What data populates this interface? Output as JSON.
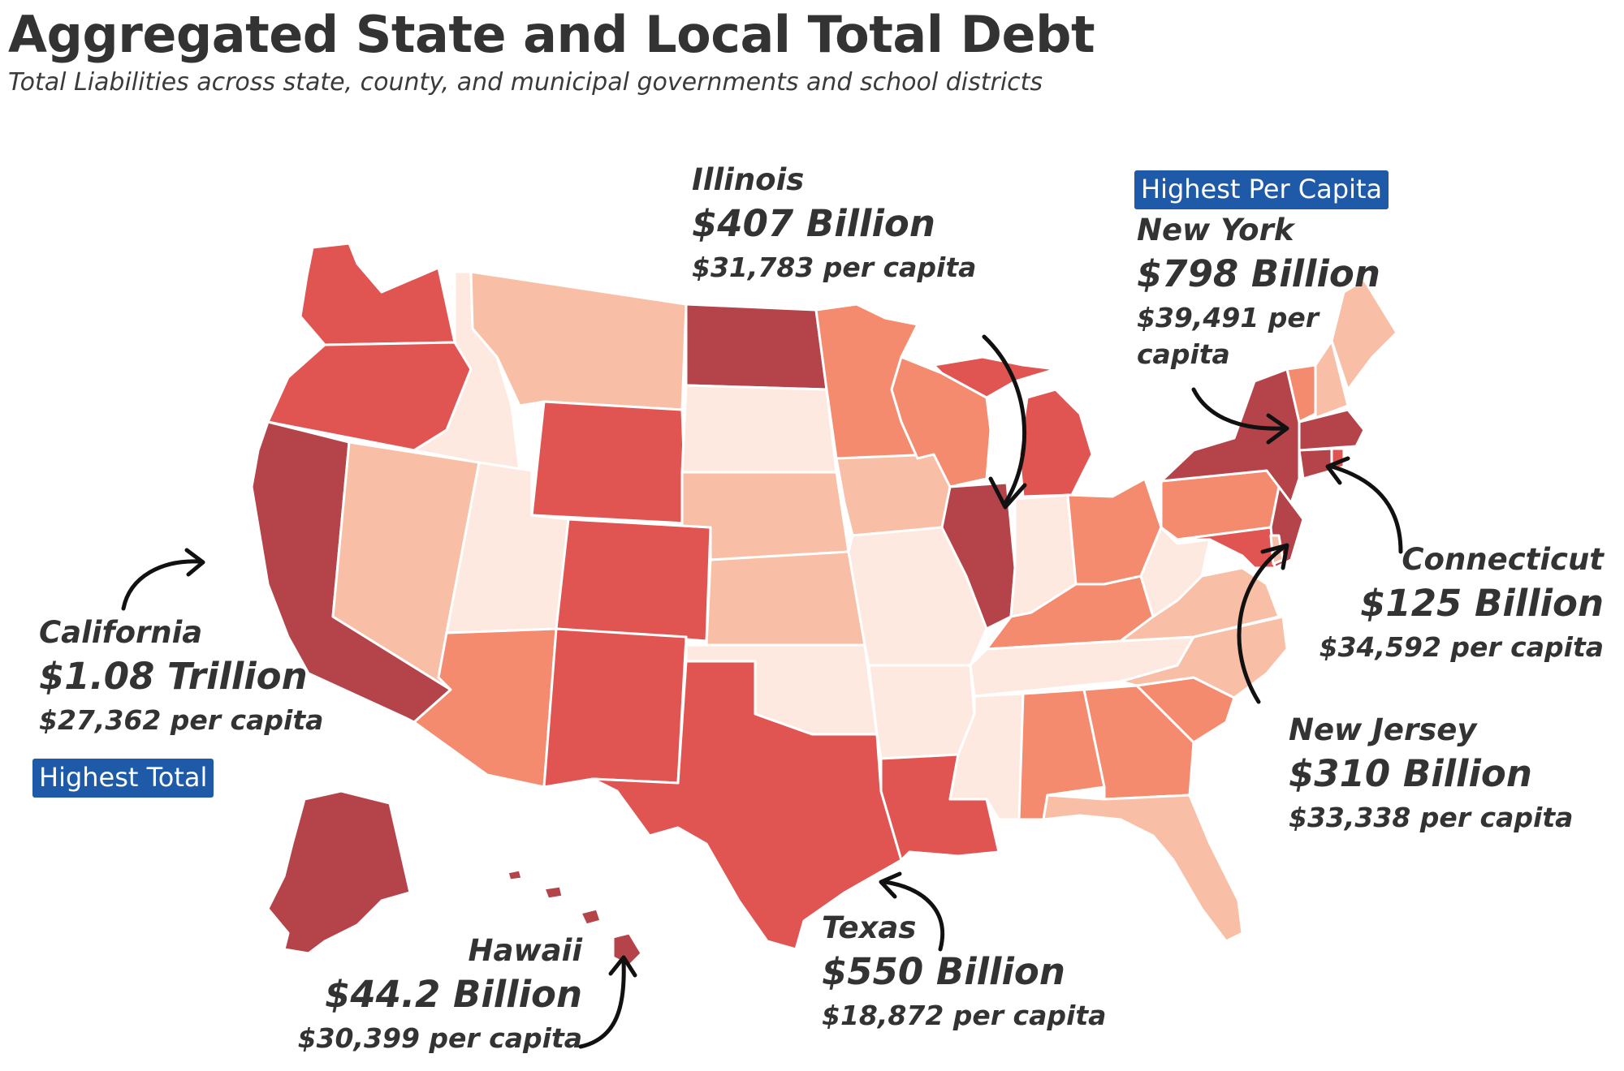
{
  "header": {
    "title": "Aggregated State and Local Total Debt",
    "subtitle": "Total Liabilities across state, county, and municipal governments and school districts"
  },
  "colors": {
    "darkest": "#b5444a",
    "dark": "#e05552",
    "medium": "#f48a6e",
    "light": "#f8bfa6",
    "lightest": "#fde9e0",
    "badge": "#1e5aa8"
  },
  "badges": {
    "highest_total": "Highest Total",
    "highest_per_capita": "Highest Per Capita"
  },
  "callouts": {
    "california": {
      "name": "California",
      "amount": "$1.08 Trillion",
      "per_capita": "$27,362 per capita"
    },
    "illinois": {
      "name": "Illinois",
      "amount": "$407 Billion",
      "per_capita": "$31,783 per capita"
    },
    "new_york": {
      "name": "New York",
      "amount": "$798 Billion",
      "per_capita_line1": "$39,491 per",
      "per_capita_line2": "capita"
    },
    "connecticut": {
      "name": "Connecticut",
      "amount": "$125 Billion",
      "per_capita": "$34,592 per capita"
    },
    "new_jersey": {
      "name": "New Jersey",
      "amount": "$310 Billion",
      "per_capita": "$33,338 per capita"
    },
    "texas": {
      "name": "Texas",
      "amount": "$550 Billion",
      "per_capita": "$18,872 per capita"
    },
    "hawaii": {
      "name": "Hawaii",
      "amount": "$44.2 Billion",
      "per_capita": "$30,399 per capita"
    }
  }
}
